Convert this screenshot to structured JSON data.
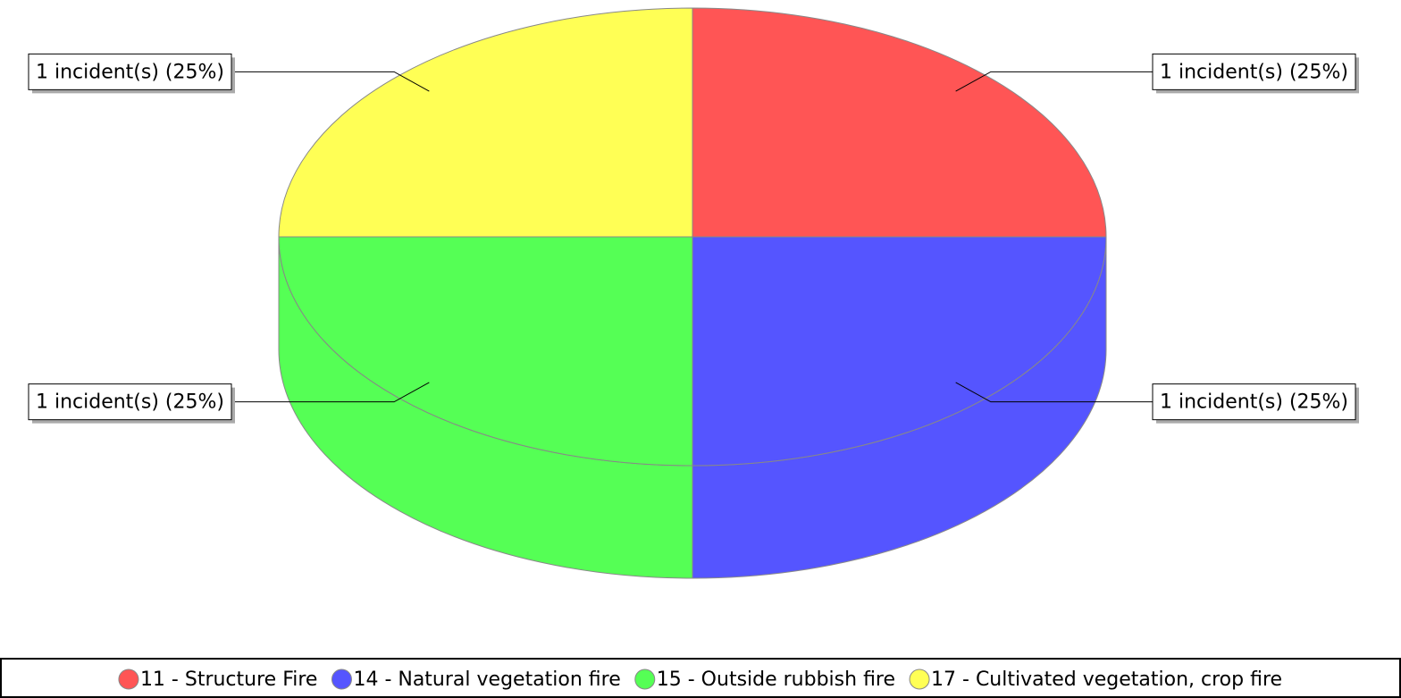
{
  "chart_data": {
    "type": "pie",
    "categories": [
      "11 - Structure Fire",
      "14 - Natural vegetation fire",
      "15 - Outside rubbish fire",
      "17 - Cultivated vegetation, crop fire"
    ],
    "values": [
      1,
      1,
      1,
      1
    ],
    "value_labels": [
      "1 incident(s) (25%)",
      "1 incident(s) (25%)",
      "1 incident(s) (25%)",
      "1 incident(s) (25%)"
    ],
    "colors": [
      "#ff5555",
      "#5555ff",
      "#55ff55",
      "#ffff55"
    ],
    "three_d": true
  }
}
